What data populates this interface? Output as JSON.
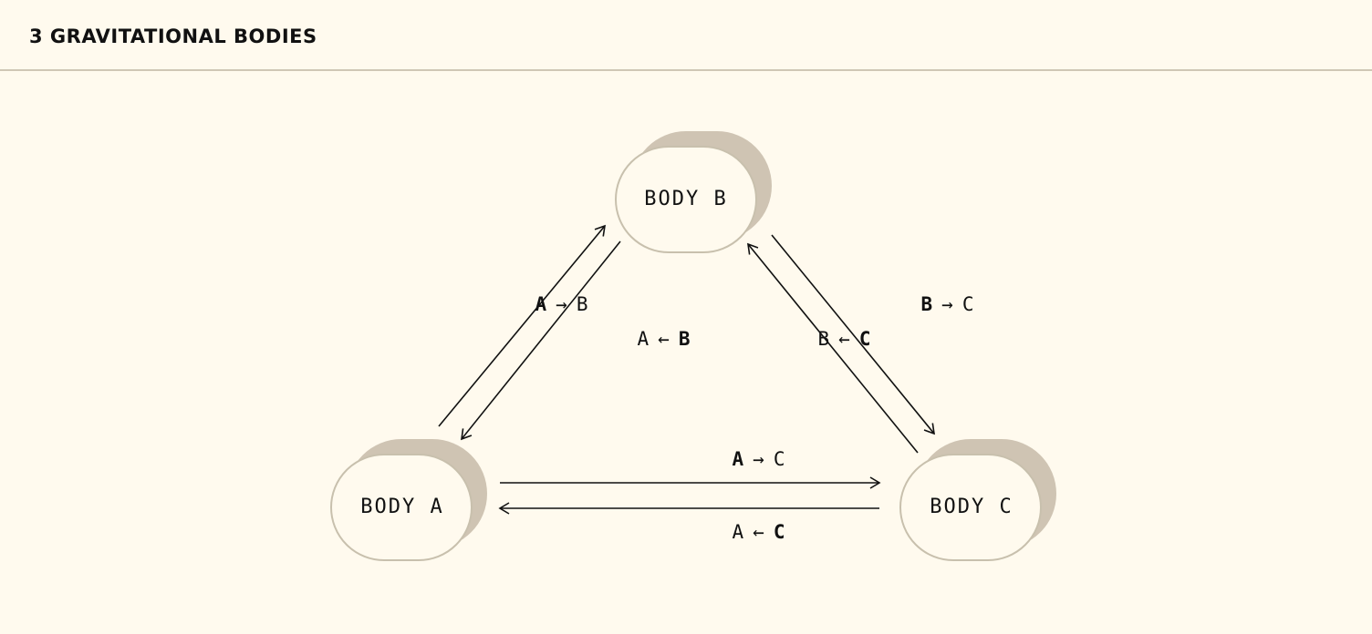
{
  "header": {
    "title": "3 GRAVITATIONAL BODIES"
  },
  "colors": {
    "background": "#fffaee",
    "node_fill": "#fffaee",
    "node_stroke": "#c8c0ad",
    "node_shadow": "#cfc4b3",
    "edge": "#111111",
    "divider": "#cfc7b5"
  },
  "bodies": {
    "a": {
      "label": "BODY A"
    },
    "b": {
      "label": "BODY B"
    },
    "c": {
      "label": "BODY C"
    }
  },
  "forces": {
    "a_to_b": {
      "from": "A",
      "arrow": "→",
      "to": "B",
      "bold": "from"
    },
    "b_to_a": {
      "from": "A",
      "arrow": "←",
      "to": "B",
      "bold": "to"
    },
    "b_to_c": {
      "from": "B",
      "arrow": "→",
      "to": "C",
      "bold": "from"
    },
    "c_to_b": {
      "from": "B",
      "arrow": "←",
      "to": "C",
      "bold": "to"
    },
    "a_to_c": {
      "from": "A",
      "arrow": "→",
      "to": "C",
      "bold": "from"
    },
    "c_to_a": {
      "from": "A",
      "arrow": "←",
      "to": "C",
      "bold": "to"
    }
  }
}
